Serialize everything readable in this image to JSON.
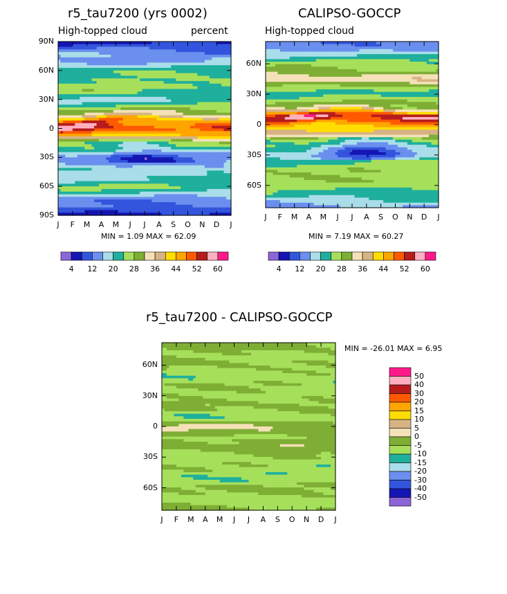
{
  "panels": {
    "model": {
      "title": "r5_tau7200 (yrs 0002)",
      "left_subtitle": "High-topped cloud",
      "right_subtitle": "percent",
      "stats": "MIN =    1.09  MAX =   62.09"
    },
    "obs": {
      "title": "CALIPSO-GOCCP",
      "left_subtitle": "High-topped cloud",
      "stats": "MIN =    7.19  MAX =   60.27"
    },
    "diff": {
      "title": "r5_tau7200 - CALIPSO-GOCCP",
      "stats": "MIN = -26.01  MAX =    6.95"
    }
  },
  "axes": {
    "months": [
      "J",
      "F",
      "M",
      "A",
      "M",
      "J",
      "J",
      "A",
      "S",
      "O",
      "N",
      "D",
      "J"
    ],
    "lat_labels_full": [
      "90N",
      "60N",
      "30N",
      "0",
      "30S",
      "60S",
      "90S"
    ],
    "lat_labels_inner": [
      "60N",
      "30N",
      "0",
      "30S",
      "60S"
    ]
  },
  "colorbar_abs": {
    "labels": [
      "4",
      "12",
      "20",
      "28",
      "36",
      "44",
      "52",
      "60"
    ],
    "colors": [
      "#8c66d9",
      "#1515b3",
      "#3355dd",
      "#6a8fee",
      "#a9dde9",
      "#1fb09d",
      "#a6e05b",
      "#7fae35",
      "#f5e1b8",
      "#d7b384",
      "#ffdd00",
      "#ffa500",
      "#ff5a00",
      "#b61c1c",
      "#ffb0c0",
      "#ff1a8c"
    ]
  },
  "colorbar_diff": {
    "labels": [
      "50",
      "40",
      "30",
      "20",
      "15",
      "10",
      "5",
      "0",
      "-5",
      "-10",
      "-15",
      "-20",
      "-30",
      "-40",
      "-50"
    ],
    "colors": [
      "#ff1a8c",
      "#ffb0c0",
      "#b61c1c",
      "#ff5a00",
      "#ffa500",
      "#ffdd00",
      "#d7b384",
      "#f5e1b8",
      "#7fae35",
      "#a6e05b",
      "#1fb09d",
      "#a9dde9",
      "#6a8fee",
      "#3355dd",
      "#1515b3",
      "#8c66d9"
    ]
  },
  "chart_data": [
    {
      "type": "heatmap",
      "title": "r5_tau7200 (yrs 0002)",
      "subtitle": "High-topped cloud, percent",
      "x": "month (Jan-Jan)",
      "y": "latitude (90S-90N)",
      "min": 1.09,
      "max": 62.09,
      "zonal_profile_approx": {
        "lat": [
          90,
          75,
          60,
          45,
          30,
          15,
          8,
          0,
          -8,
          -15,
          -30,
          -45,
          -60,
          -75,
          -90
        ],
        "value": [
          8,
          14,
          22,
          26,
          20,
          30,
          44,
          50,
          42,
          28,
          14,
          18,
          24,
          14,
          6
        ]
      }
    },
    {
      "type": "heatmap",
      "title": "CALIPSO-GOCCP",
      "subtitle": "High-topped cloud",
      "x": "month (Jan-Jan)",
      "y": "latitude (82S-82N)",
      "min": 7.19,
      "max": 60.27,
      "zonal_profile_approx": {
        "lat": [
          82,
          70,
          60,
          45,
          30,
          15,
          8,
          0,
          -8,
          -15,
          -30,
          -45,
          -60,
          -70,
          -82
        ],
        "value": [
          12,
          18,
          26,
          34,
          22,
          32,
          50,
          44,
          40,
          26,
          18,
          28,
          26,
          22,
          14
        ]
      }
    },
    {
      "type": "heatmap",
      "title": "r5_tau7200 - CALIPSO-GOCCP",
      "x": "month (Jan-Jan)",
      "y": "latitude (82S-82N)",
      "min": -26.01,
      "max": 6.95
    }
  ]
}
